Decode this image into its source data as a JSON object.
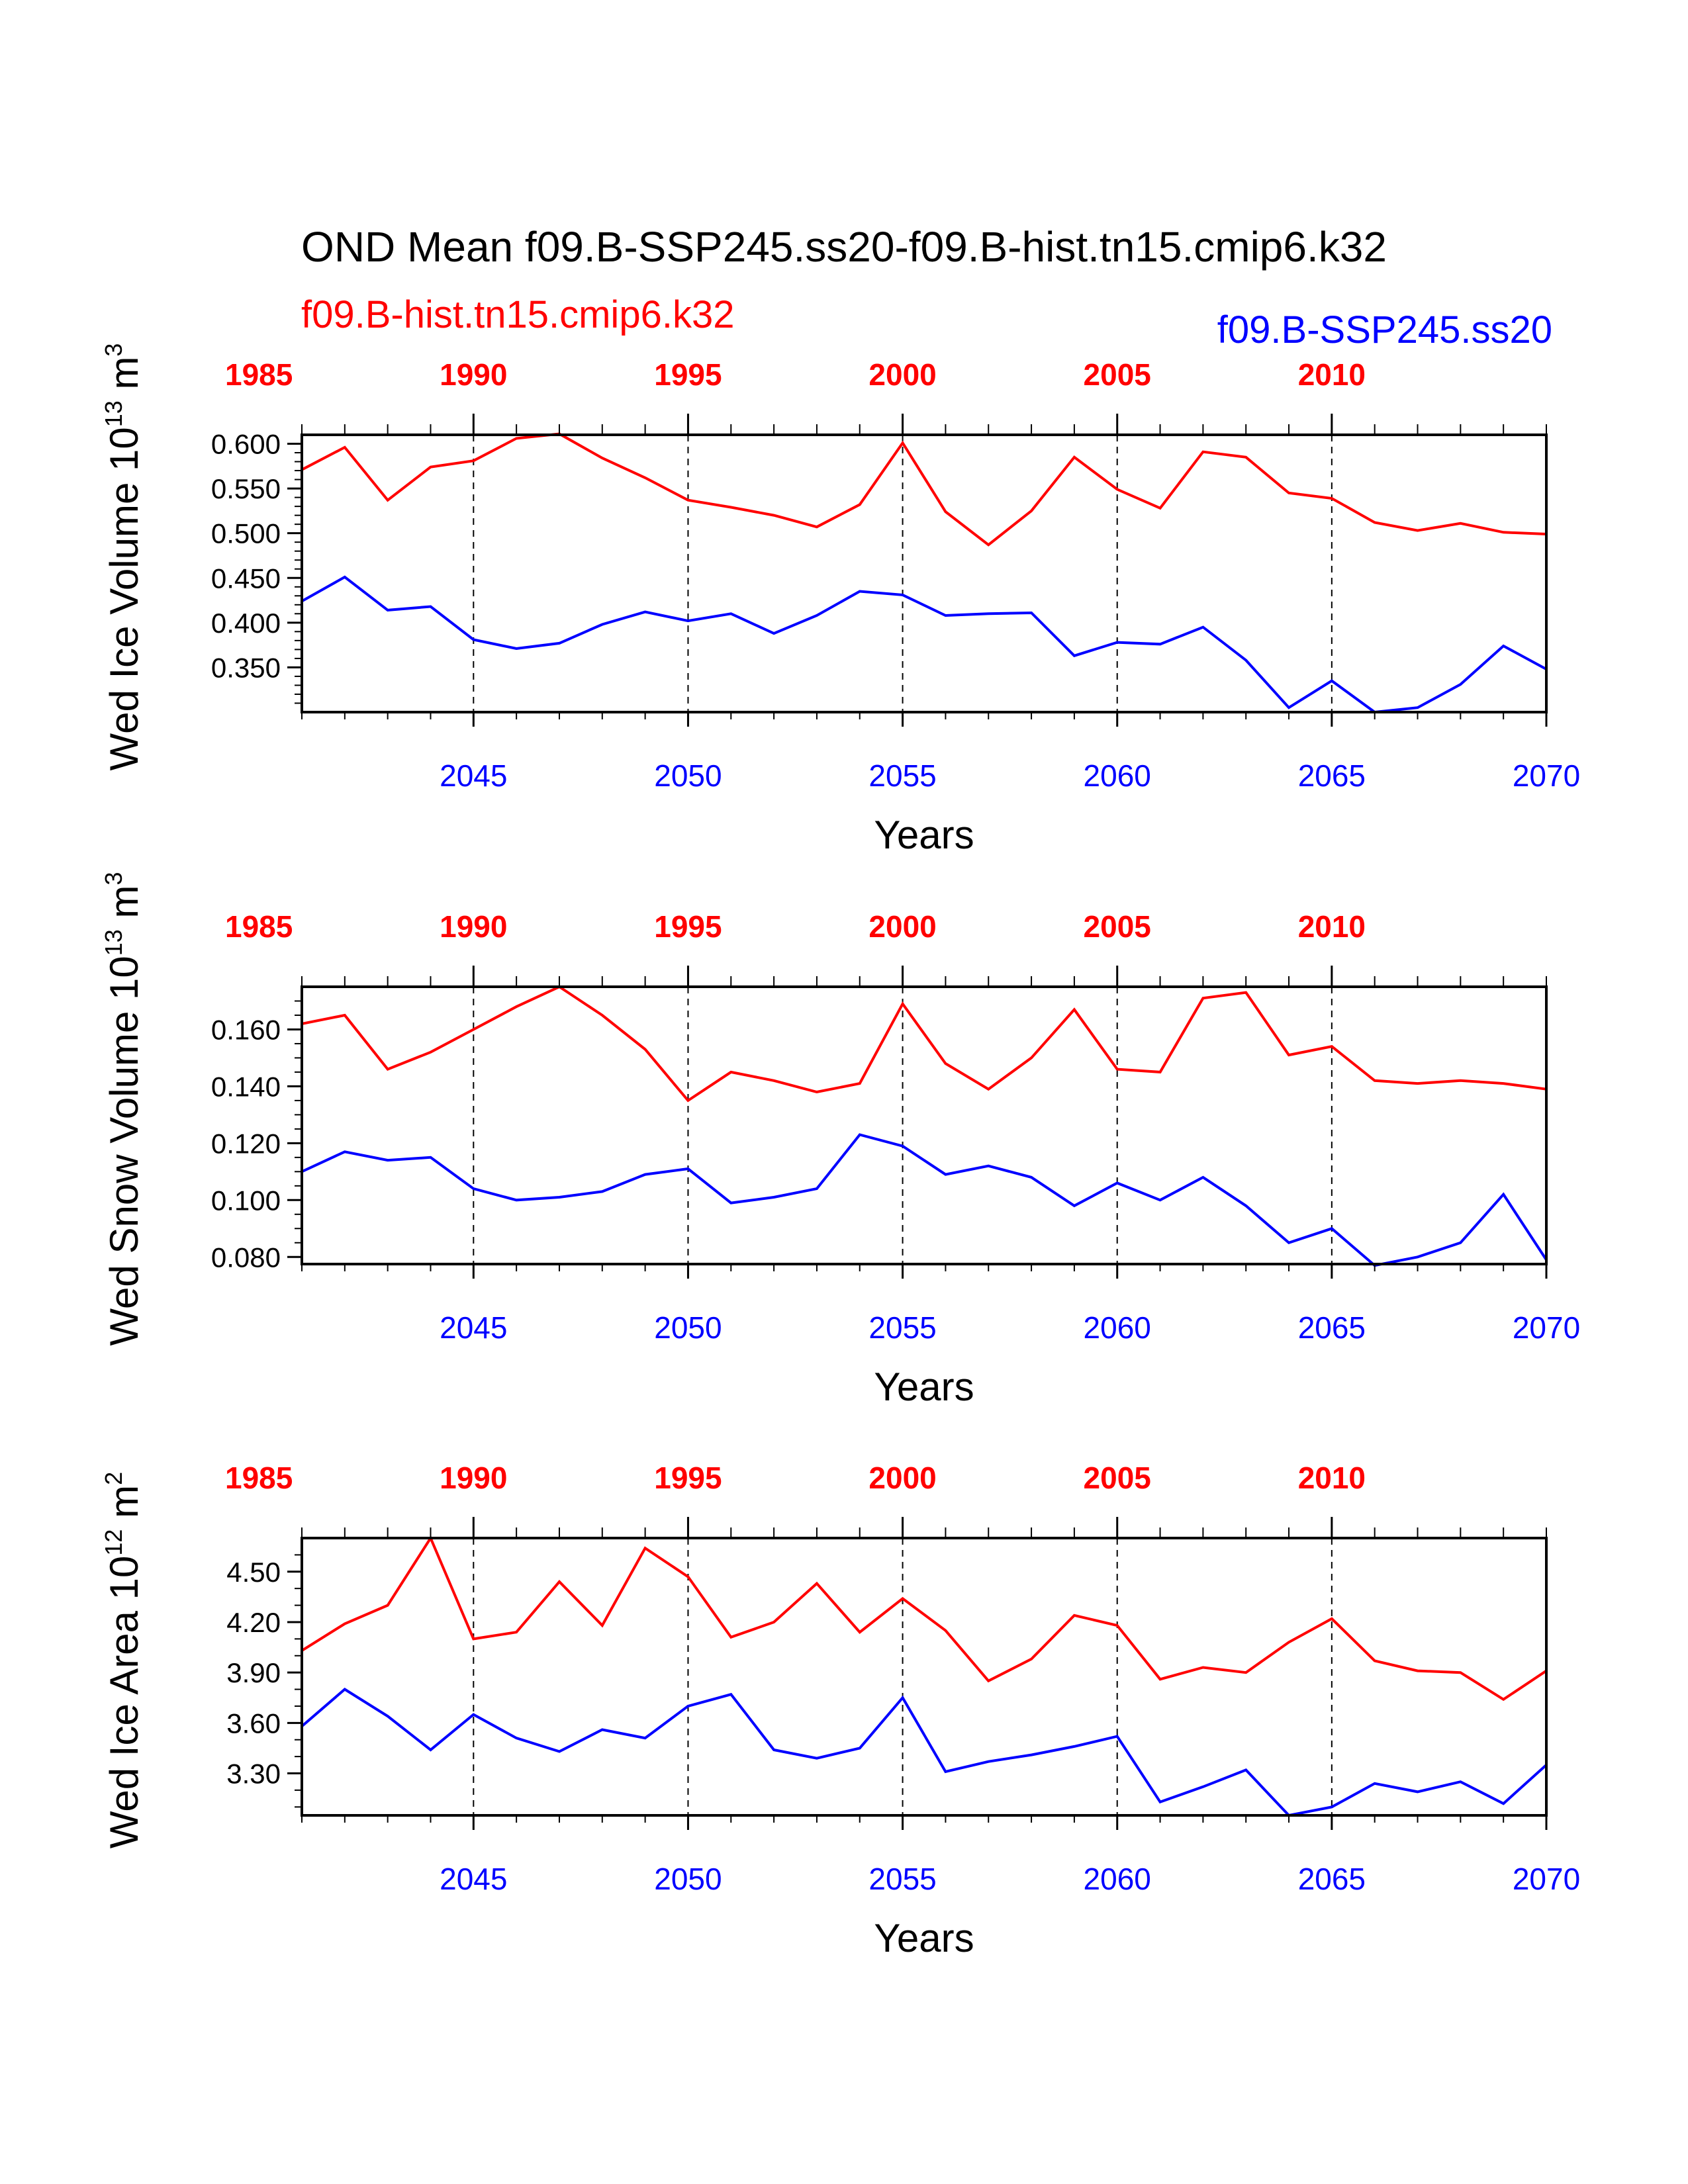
{
  "figure": {
    "title": "OND Mean f09.B-SSP245.ss20-f09.B-hist.tn15.cmip6.k32",
    "legend_left": "f09.B-hist.tn15.cmip6.k32",
    "legend_right": "f09.B-SSP245.ss20",
    "colors": {
      "hist": "#ff0000",
      "ssp": "#0000ff",
      "axis": "#000000"
    }
  },
  "chart_data": [
    {
      "type": "line",
      "ylabel": "Wed Ice Volume 10",
      "ylabel_exp": "13",
      "ylabel_unit": " m",
      "ylabel_unit_exp": "3",
      "xlabel": "Years",
      "xlim": [
        2041,
        2070
      ],
      "ylim": [
        0.3,
        0.61
      ],
      "yticks": [
        0.35,
        0.4,
        0.45,
        0.5,
        0.55,
        0.6
      ],
      "ytick_labels": [
        "0.350",
        "0.400",
        "0.450",
        "0.500",
        "0.550",
        "0.600"
      ],
      "yminor": [
        0.31,
        0.32,
        0.33,
        0.34,
        0.36,
        0.37,
        0.38,
        0.39,
        0.41,
        0.42,
        0.43,
        0.44,
        0.46,
        0.47,
        0.48,
        0.49,
        0.51,
        0.52,
        0.53,
        0.54,
        0.56,
        0.57,
        0.58,
        0.59
      ],
      "bottom_ticks": [
        2045,
        2050,
        2055,
        2060,
        2065,
        2070
      ],
      "bottom_tick_labels": [
        "2045",
        "2050",
        "2055",
        "2060",
        "2065",
        "2070"
      ],
      "top_ticks": [
        1985,
        1990,
        1995,
        2000,
        2005,
        2010
      ],
      "top_tick_labels": [
        "1985",
        "1990",
        "1995",
        "2000",
        "2005",
        "2010"
      ],
      "x": [
        2041,
        2042,
        2043,
        2044,
        2045,
        2046,
        2047,
        2048,
        2049,
        2050,
        2051,
        2052,
        2053,
        2054,
        2055,
        2056,
        2057,
        2058,
        2059,
        2060,
        2061,
        2062,
        2063,
        2064,
        2065,
        2066,
        2067,
        2068,
        2069,
        2070
      ],
      "series": [
        {
          "key": "hist",
          "values": [
            0.571,
            0.596,
            0.537,
            0.574,
            0.581,
            0.606,
            0.611,
            0.584,
            0.562,
            0.537,
            0.529,
            0.52,
            0.507,
            0.532,
            0.601,
            0.524,
            0.487,
            0.525,
            0.585,
            0.549,
            0.528,
            0.591,
            0.585,
            0.545,
            0.539,
            0.512,
            0.503,
            0.511,
            0.501,
            0.499
          ]
        },
        {
          "key": "ssp",
          "values": [
            0.424,
            0.451,
            0.414,
            0.418,
            0.381,
            0.371,
            0.377,
            0.398,
            0.412,
            0.402,
            0.41,
            0.388,
            0.408,
            0.435,
            0.431,
            0.408,
            0.41,
            0.411,
            0.363,
            0.378,
            0.376,
            0.395,
            0.358,
            0.305,
            0.335,
            0.3,
            0.305,
            0.331,
            0.374,
            0.348
          ]
        }
      ]
    },
    {
      "type": "line",
      "ylabel": "Wed Snow Volume 10",
      "ylabel_exp": "13",
      "ylabel_unit": " m",
      "ylabel_unit_exp": "3",
      "xlabel": "Years",
      "xlim": [
        2041,
        2070
      ],
      "ylim": [
        0.0775,
        0.175
      ],
      "yticks": [
        0.08,
        0.1,
        0.12,
        0.14,
        0.16
      ],
      "ytick_labels": [
        "0.080",
        "0.100",
        "0.120",
        "0.140",
        "0.160"
      ],
      "yminor": [
        0.085,
        0.09,
        0.095,
        0.105,
        0.11,
        0.115,
        0.125,
        0.13,
        0.135,
        0.145,
        0.15,
        0.155,
        0.165,
        0.17
      ],
      "bottom_ticks": [
        2045,
        2050,
        2055,
        2060,
        2065,
        2070
      ],
      "bottom_tick_labels": [
        "2045",
        "2050",
        "2055",
        "2060",
        "2065",
        "2070"
      ],
      "top_ticks": [
        1985,
        1990,
        1995,
        2000,
        2005,
        2010
      ],
      "top_tick_labels": [
        "1985",
        "1990",
        "1995",
        "2000",
        "2005",
        "2010"
      ],
      "x": [
        2041,
        2042,
        2043,
        2044,
        2045,
        2046,
        2047,
        2048,
        2049,
        2050,
        2051,
        2052,
        2053,
        2054,
        2055,
        2056,
        2057,
        2058,
        2059,
        2060,
        2061,
        2062,
        2063,
        2064,
        2065,
        2066,
        2067,
        2068,
        2069,
        2070
      ],
      "series": [
        {
          "key": "hist",
          "values": [
            0.162,
            0.165,
            0.146,
            0.152,
            0.16,
            0.168,
            0.175,
            0.165,
            0.153,
            0.135,
            0.145,
            0.142,
            0.138,
            0.141,
            0.169,
            0.148,
            0.139,
            0.15,
            0.167,
            0.146,
            0.145,
            0.171,
            0.173,
            0.151,
            0.154,
            0.142,
            0.141,
            0.142,
            0.141,
            0.139
          ]
        },
        {
          "key": "ssp",
          "values": [
            0.11,
            0.117,
            0.114,
            0.115,
            0.104,
            0.1,
            0.101,
            0.103,
            0.109,
            0.111,
            0.099,
            0.101,
            0.104,
            0.123,
            0.119,
            0.109,
            0.112,
            0.108,
            0.098,
            0.106,
            0.1,
            0.108,
            0.098,
            0.085,
            0.09,
            0.077,
            0.08,
            0.085,
            0.102,
            0.079
          ]
        }
      ]
    },
    {
      "type": "line",
      "ylabel": "Wed Ice Area 10",
      "ylabel_exp": "12",
      "ylabel_unit": " m",
      "ylabel_unit_exp": "2",
      "xlabel": "Years",
      "xlim": [
        2041,
        2070
      ],
      "ylim": [
        3.05,
        4.7
      ],
      "yticks": [
        3.3,
        3.6,
        3.9,
        4.2,
        4.5
      ],
      "ytick_labels": [
        "3.30",
        "3.60",
        "3.90",
        "4.20",
        "4.50"
      ],
      "yminor": [
        3.1,
        3.2,
        3.4,
        3.5,
        3.7,
        3.8,
        4.0,
        4.1,
        4.3,
        4.4,
        4.6
      ],
      "bottom_ticks": [
        2045,
        2050,
        2055,
        2060,
        2065,
        2070
      ],
      "bottom_tick_labels": [
        "2045",
        "2050",
        "2055",
        "2060",
        "2065",
        "2070"
      ],
      "top_ticks": [
        1985,
        1990,
        1995,
        2000,
        2005,
        2010
      ],
      "top_tick_labels": [
        "1985",
        "1990",
        "1995",
        "2000",
        "2005",
        "2010"
      ],
      "x": [
        2041,
        2042,
        2043,
        2044,
        2045,
        2046,
        2047,
        2048,
        2049,
        2050,
        2051,
        2052,
        2053,
        2054,
        2055,
        2056,
        2057,
        2058,
        2059,
        2060,
        2061,
        2062,
        2063,
        2064,
        2065,
        2066,
        2067,
        2068,
        2069,
        2070
      ],
      "series": [
        {
          "key": "hist",
          "values": [
            4.03,
            4.19,
            4.3,
            4.7,
            4.1,
            4.14,
            4.44,
            4.18,
            4.64,
            4.47,
            4.11,
            4.2,
            4.43,
            4.14,
            4.34,
            4.15,
            3.85,
            3.98,
            4.24,
            4.18,
            3.86,
            3.93,
            3.9,
            4.08,
            4.22,
            3.97,
            3.91,
            3.9,
            3.74,
            3.91
          ]
        },
        {
          "key": "ssp",
          "values": [
            3.58,
            3.8,
            3.64,
            3.44,
            3.65,
            3.51,
            3.43,
            3.56,
            3.51,
            3.7,
            3.77,
            3.44,
            3.39,
            3.45,
            3.75,
            3.31,
            3.37,
            3.41,
            3.46,
            3.52,
            3.13,
            3.22,
            3.32,
            3.05,
            3.1,
            3.24,
            3.19,
            3.25,
            3.12,
            3.35
          ]
        }
      ]
    }
  ]
}
